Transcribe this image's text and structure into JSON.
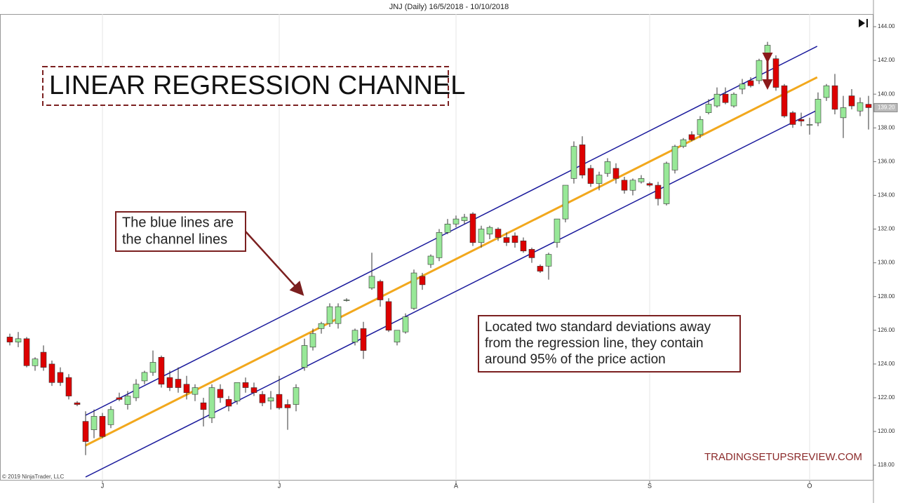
{
  "chart_data": {
    "type": "candlestick",
    "title": "JNJ (Daily)  16/5/2018 - 10/10/2018",
    "categories": [
      null,
      null,
      null,
      null,
      null,
      null,
      null,
      null,
      null,
      null,
      null,
      "J",
      null,
      null,
      null,
      null,
      null,
      null,
      null,
      null,
      null,
      null,
      null,
      null,
      null,
      null,
      null,
      null,
      null,
      null,
      null,
      null,
      "J",
      null,
      null,
      null,
      null,
      null,
      null,
      null,
      null,
      null,
      null,
      null,
      null,
      null,
      null,
      null,
      null,
      null,
      null,
      null,
      null,
      "A",
      null,
      null,
      null,
      null,
      null,
      null,
      null,
      null,
      null,
      null,
      null,
      null,
      null,
      null,
      null,
      null,
      null,
      null,
      null,
      null,
      null,
      null,
      "S",
      null,
      null,
      null,
      null,
      null,
      null,
      null,
      null,
      null,
      null,
      null,
      null,
      null,
      null,
      null,
      null,
      null,
      null,
      "O",
      null,
      null,
      null,
      null,
      null,
      null,
      null
    ],
    "series": [
      {
        "up_color": "#98e898",
        "down_color": "#dd0000",
        "open": [
          125.6,
          125.3,
          125.5,
          123.9,
          124.7,
          124.0,
          123.5,
          123.2,
          121.7,
          120.6,
          120.1,
          120.9,
          120.4,
          122.0,
          121.6,
          122.0,
          123.0,
          123.5,
          124.4,
          123.2,
          123.1,
          122.8,
          122.2,
          121.7,
          120.8,
          122.5,
          121.9,
          121.8,
          122.9,
          122.6,
          122.2,
          121.8,
          122.2,
          121.6,
          121.6,
          123.8,
          125.0,
          126.1,
          126.4,
          126.4,
          127.8,
          125.3,
          126.1,
          128.5,
          128.9,
          127.7,
          125.3,
          125.9,
          127.3,
          129.2,
          129.9,
          130.3,
          131.8,
          132.3,
          132.5,
          132.9,
          131.2,
          131.7,
          132.0,
          131.5,
          131.6,
          131.3,
          130.8,
          129.8,
          129.8,
          131.2,
          132.6,
          135.0,
          137.0,
          135.6,
          134.7,
          135.3,
          135.6,
          134.9,
          134.3,
          134.8,
          134.7,
          134.6,
          133.5,
          135.5,
          136.9,
          137.6,
          137.6,
          138.9,
          139.3,
          140.0,
          139.3,
          140.3,
          140.8,
          140.8,
          142.3,
          142.1,
          140.5,
          138.9,
          138.5,
          138.2,
          138.3,
          139.8,
          140.5,
          138.6,
          139.9,
          139.0,
          139.4
        ],
        "high": [
          125.8,
          125.9,
          125.6,
          124.4,
          125.1,
          124.2,
          123.8,
          123.4,
          121.8,
          121.2,
          121.3,
          121.1,
          121.5,
          122.3,
          122.4,
          123.1,
          123.6,
          124.8,
          124.5,
          123.6,
          123.8,
          123.3,
          122.8,
          122.0,
          122.8,
          122.8,
          122.1,
          122.9,
          123.2,
          122.9,
          122.4,
          122.4,
          123.3,
          121.9,
          122.8,
          125.5,
          126.1,
          126.5,
          127.6,
          127.6,
          127.9,
          126.1,
          126.5,
          130.6,
          129.0,
          127.9,
          126.0,
          127.0,
          129.6,
          129.4,
          130.5,
          132.0,
          132.6,
          132.8,
          132.9,
          133.0,
          132.2,
          132.2,
          132.1,
          131.8,
          131.8,
          131.5,
          130.9,
          129.9,
          130.6,
          132.6,
          134.6,
          137.2,
          137.5,
          135.8,
          135.4,
          136.2,
          135.9,
          135.1,
          135.0,
          135.2,
          134.8,
          134.8,
          136.0,
          137.0,
          137.4,
          137.8,
          138.7,
          139.7,
          140.4,
          140.4,
          140.1,
          140.9,
          141.0,
          142.1,
          143.1,
          142.3,
          140.6,
          139.0,
          138.9,
          138.6,
          140.1,
          140.6,
          141.2,
          139.9,
          140.3,
          139.8,
          139.9
        ],
        "low": [
          125.1,
          125.0,
          123.8,
          123.6,
          123.6,
          122.7,
          122.7,
          121.9,
          121.5,
          118.6,
          119.6,
          119.6,
          120.2,
          121.8,
          121.3,
          121.8,
          122.8,
          123.3,
          122.6,
          122.4,
          122.3,
          121.9,
          121.8,
          120.3,
          120.5,
          121.7,
          121.2,
          121.6,
          122.3,
          122.1,
          121.5,
          121.3,
          121.3,
          120.1,
          121.2,
          123.6,
          124.8,
          125.8,
          126.2,
          126.1,
          127.7,
          125.1,
          124.3,
          128.4,
          127.4,
          125.9,
          125.1,
          125.8,
          127.2,
          128.4,
          129.7,
          130.1,
          131.7,
          132.1,
          132.3,
          131.0,
          130.9,
          131.4,
          131.3,
          131.0,
          130.9,
          130.6,
          130.0,
          129.4,
          129.0,
          130.9,
          132.4,
          134.7,
          135.0,
          134.5,
          134.3,
          135.1,
          134.7,
          134.1,
          134.0,
          134.7,
          134.5,
          133.4,
          133.4,
          135.3,
          136.8,
          137.2,
          137.4,
          138.8,
          139.2,
          139.4,
          139.2,
          140.0,
          140.4,
          140.6,
          141.5,
          140.2,
          138.6,
          138.0,
          138.1,
          137.6,
          138.1,
          139.6,
          138.8,
          137.4,
          139.1,
          138.7,
          137.9
        ],
        "close": [
          125.3,
          125.5,
          123.9,
          124.3,
          123.8,
          122.9,
          122.9,
          122.1,
          121.6,
          119.4,
          120.9,
          119.7,
          121.3,
          121.9,
          122.1,
          122.8,
          123.5,
          124.1,
          122.8,
          122.6,
          122.6,
          122.3,
          122.6,
          121.3,
          122.6,
          122.0,
          121.5,
          122.9,
          122.6,
          122.3,
          121.7,
          122.0,
          121.4,
          121.4,
          122.6,
          125.1,
          125.8,
          126.4,
          127.4,
          127.4,
          127.8,
          126.0,
          124.8,
          129.2,
          127.8,
          126.0,
          126.0,
          126.8,
          129.4,
          128.7,
          130.4,
          131.8,
          132.3,
          132.6,
          132.7,
          131.2,
          132.0,
          132.1,
          131.5,
          131.2,
          131.2,
          130.7,
          130.3,
          129.5,
          130.5,
          132.6,
          134.6,
          136.9,
          135.2,
          134.7,
          135.2,
          136.0,
          135.0,
          134.3,
          134.9,
          135.0,
          134.6,
          133.8,
          135.9,
          136.9,
          137.3,
          137.3,
          138.5,
          139.4,
          140.0,
          139.5,
          140.0,
          140.6,
          140.5,
          142.0,
          142.9,
          140.4,
          138.7,
          138.2,
          138.4,
          138.2,
          139.7,
          140.5,
          139.1,
          139.2,
          139.3,
          139.5,
          139.2
        ]
      }
    ],
    "regression_line": {
      "x": [
        9,
        95.9
      ],
      "y": [
        119.17,
        141.0
      ],
      "color": "#f2a81d"
    },
    "upper_channel": {
      "x": [
        9,
        95.9
      ],
      "y": [
        120.96,
        142.84
      ],
      "color": "#1a1a9c"
    },
    "lower_channel": {
      "x": [
        9,
        95.9
      ],
      "y": [
        117.3,
        139.05
      ],
      "color": "#1a1a9c"
    },
    "ylim": [
      117.09,
      144.75
    ],
    "yticks": [
      {
        "value": 118,
        "label": "118.00"
      },
      {
        "value": 120,
        "label": "120.00"
      },
      {
        "value": 122,
        "label": "122.00"
      },
      {
        "value": 124,
        "label": "124.00"
      },
      {
        "value": 126,
        "label": "126.00"
      },
      {
        "value": 128,
        "label": "128.00"
      },
      {
        "value": 130,
        "label": "130.00"
      },
      {
        "value": 132,
        "label": "132.00"
      },
      {
        "value": 134,
        "label": "134.00"
      },
      {
        "value": 136,
        "label": "136.00"
      },
      {
        "value": 138,
        "label": "138.00"
      },
      {
        "value": 140,
        "label": "140.00"
      },
      {
        "value": 142,
        "label": "142.00"
      },
      {
        "value": 144,
        "label": "144.00"
      }
    ],
    "last_price": {
      "value": 139.2,
      "label": "139.20"
    },
    "grid": "x",
    "heading": "LINEAR REGRESSION CHANNEL",
    "callout_1": [
      "The blue lines are",
      "the channel lines"
    ],
    "callout_2": [
      "Located two standard deviations away",
      "from the regression line, they contain",
      "around 95% of the price action"
    ],
    "watermark": "TRADINGSETUPSREVIEW.COM",
    "copyright": "© 2019 NinjaTrader, LLC"
  }
}
